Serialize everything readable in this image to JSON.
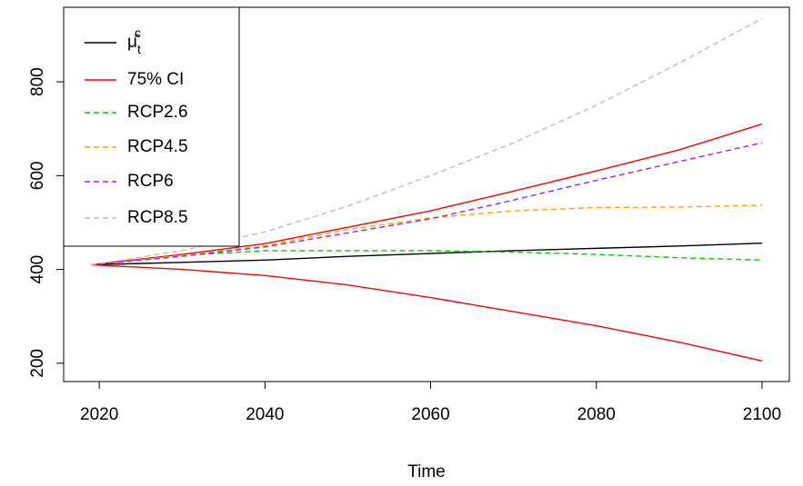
{
  "chart_data": {
    "type": "line",
    "xlabel": "Time",
    "x": [
      2019,
      2030,
      2040,
      2050,
      2060,
      2070,
      2080,
      2090,
      2100
    ],
    "xlim": [
      2015.7,
      2103.3
    ],
    "xticks": [
      2020,
      2040,
      2060,
      2080,
      2100
    ],
    "ylim": [
      161,
      959
    ],
    "yticks": [
      200,
      400,
      600,
      800
    ],
    "legend": "top-left",
    "series": [
      {
        "name": "μ̂tc",
        "color": "#000000",
        "dash": false,
        "values": [
          410,
          415,
          420,
          428,
          434,
          440,
          445,
          450,
          456
        ]
      },
      {
        "name": "75% CI",
        "color": "#ff0000",
        "dash": false,
        "values": [
          410,
          432,
          455,
          490,
          525,
          567,
          610,
          655,
          710
        ],
        "lower": [
          410,
          400,
          387,
          367,
          340,
          310,
          280,
          245,
          205
        ]
      },
      {
        "name": "RCP2.6",
        "color": "#00cc00",
        "dash": true,
        "values": [
          410,
          430,
          440,
          440,
          440,
          437,
          432,
          425,
          420
        ]
      },
      {
        "name": "RCP4.5",
        "color": "#ffa500",
        "dash": true,
        "values": [
          410,
          430,
          450,
          485,
          510,
          525,
          532,
          533,
          537
        ]
      },
      {
        "name": "RCP6",
        "color": "#a020f0",
        "dash": true,
        "values": [
          410,
          428,
          448,
          478,
          508,
          548,
          590,
          630,
          670
        ]
      },
      {
        "name": "RCP8.5",
        "color": "#bebebe",
        "dash": true,
        "values": [
          410,
          440,
          480,
          535,
          600,
          670,
          750,
          840,
          935
        ]
      }
    ]
  }
}
